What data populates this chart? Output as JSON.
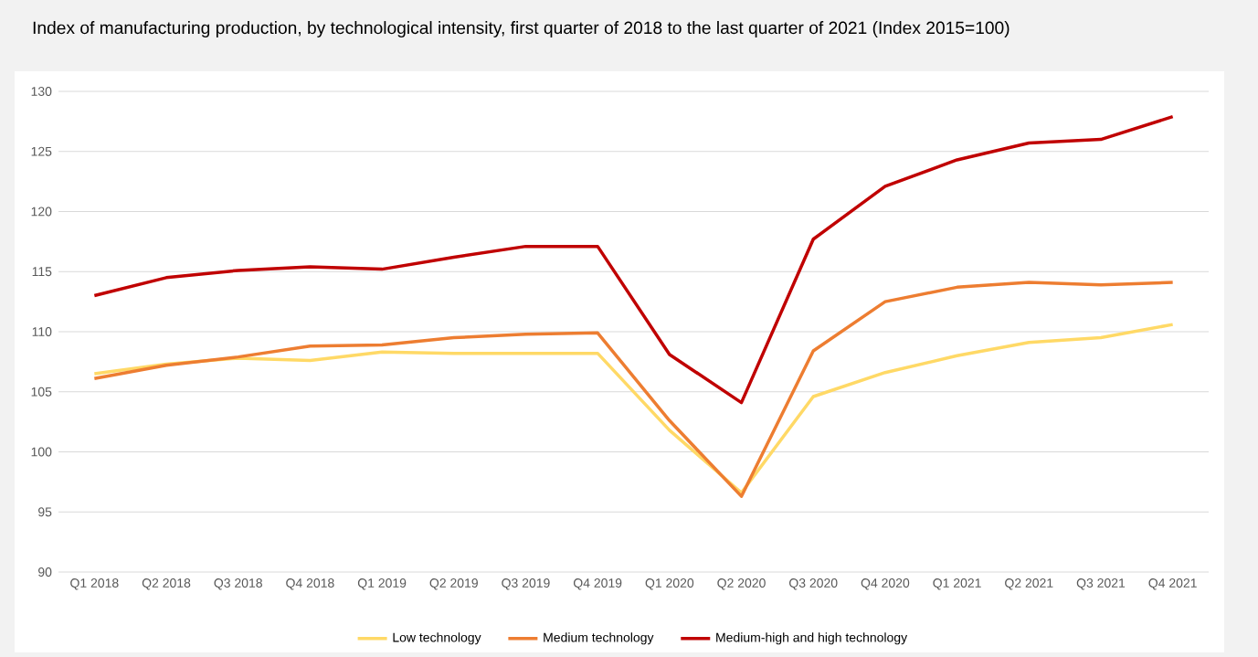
{
  "chart_data": {
    "type": "line",
    "title": "Index of manufacturing production, by technological intensity, first quarter of 2018 to the last quarter of 2021 (Index 2015=100)",
    "categories": [
      "Q1 2018",
      "Q2 2018",
      "Q3 2018",
      "Q4 2018",
      "Q1 2019",
      "Q2 2019",
      "Q3 2019",
      "Q4 2019",
      "Q1 2020",
      "Q2 2020",
      "Q3 2020",
      "Q4 2020",
      "Q1 2021",
      "Q2 2021",
      "Q3 2021",
      "Q4 2021"
    ],
    "series": [
      {
        "name": "Low technology",
        "color": "#ffd966",
        "values": [
          106.5,
          107.3,
          107.8,
          107.6,
          108.3,
          108.2,
          108.2,
          108.2,
          101.8,
          96.6,
          104.6,
          106.6,
          108.0,
          109.1,
          109.5,
          110.6
        ]
      },
      {
        "name": "Medium technology",
        "color": "#ed7d31",
        "values": [
          106.1,
          107.2,
          107.9,
          108.8,
          108.9,
          109.5,
          109.8,
          109.9,
          102.6,
          96.3,
          108.4,
          112.5,
          113.7,
          114.1,
          113.9,
          114.1
        ]
      },
      {
        "name": "Medium-high and high technology",
        "color": "#c00000",
        "values": [
          113.0,
          114.5,
          115.1,
          115.4,
          115.2,
          116.2,
          117.1,
          117.1,
          108.1,
          104.1,
          117.7,
          122.1,
          124.3,
          125.7,
          126.0,
          127.9
        ]
      }
    ],
    "ylim": [
      90,
      130
    ],
    "yticks": [
      90,
      95,
      100,
      105,
      110,
      115,
      120,
      125,
      130
    ],
    "grid": "y",
    "legend": "bottom"
  }
}
